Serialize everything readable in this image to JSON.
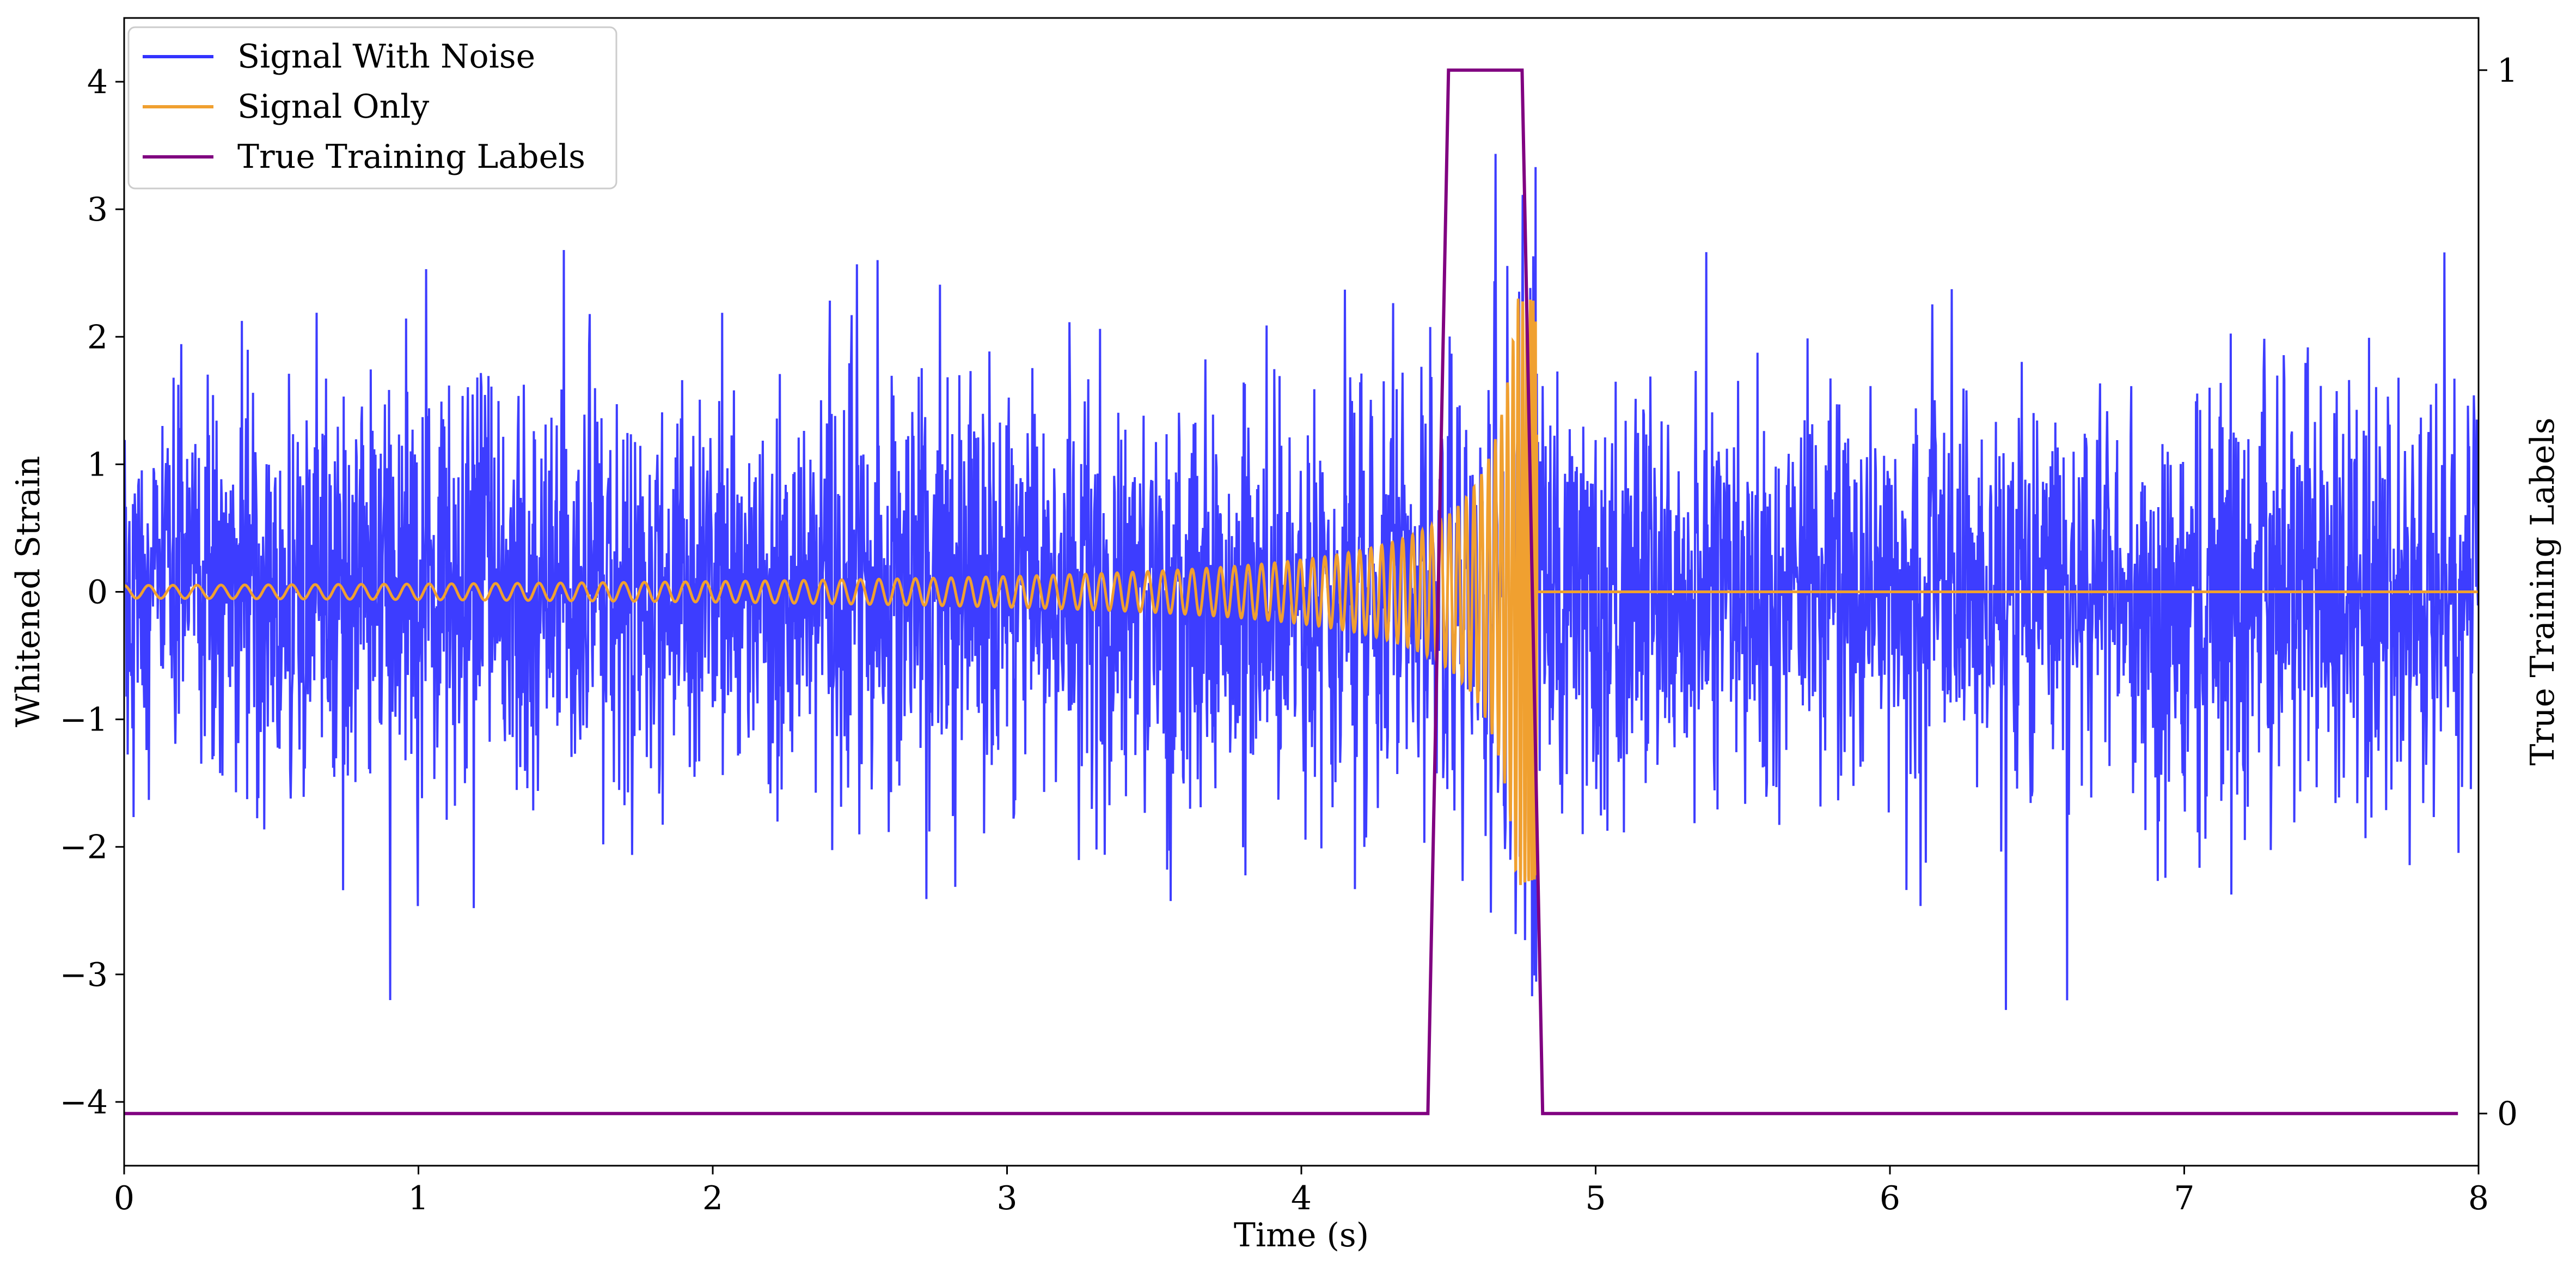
{
  "chart_data": {
    "type": "line",
    "x_label": "Time (s)",
    "y_label_left": "Whitened Strain",
    "y_label_right": "True Training Labels",
    "xlim": [
      0,
      8
    ],
    "ylim_left": [
      -4.5,
      4.5
    ],
    "ylim_right": [
      -0.05,
      1.05
    ],
    "x_ticks": [
      "0",
      "1",
      "2",
      "3",
      "4",
      "5",
      "6",
      "7",
      "8"
    ],
    "y_ticks_left": [
      "−4",
      "−3",
      "−2",
      "−1",
      "0",
      "1",
      "2",
      "3",
      "4"
    ],
    "y_ticks_right": [
      "0",
      "1"
    ],
    "x_tick_values": [
      0,
      1,
      2,
      3,
      4,
      5,
      6,
      7,
      8
    ],
    "y_tick_values_left": [
      -4,
      -3,
      -2,
      -1,
      0,
      1,
      2,
      3,
      4
    ],
    "y_tick_values_right": [
      0,
      1
    ],
    "legend_position": "top-left",
    "grid": false,
    "series": [
      {
        "name": "Signal With Noise",
        "color": "#3333ff",
        "axis": "left",
        "description": "white noise, std ~0.8, peaks ~±4",
        "x_range": [
          0,
          8
        ],
        "noise_std": 0.8
      },
      {
        "name": "Signal Only",
        "color": "#f0a030",
        "axis": "left",
        "description": "chirp",
        "x_range": [
          0,
          8
        ],
        "chirp": {
          "start_amplitude": 0.05,
          "peak_amplitude": 2.3,
          "merger_time": 4.8,
          "start_frequency_hz": 12,
          "end_frequency_hz": 60
        }
      },
      {
        "name": "True Training Labels",
        "color": "#800080",
        "axis": "right",
        "x": [
          0,
          4.43,
          4.5,
          4.75,
          4.82,
          7.93
        ],
        "y": [
          0,
          0,
          1,
          1,
          0,
          0
        ]
      }
    ]
  }
}
